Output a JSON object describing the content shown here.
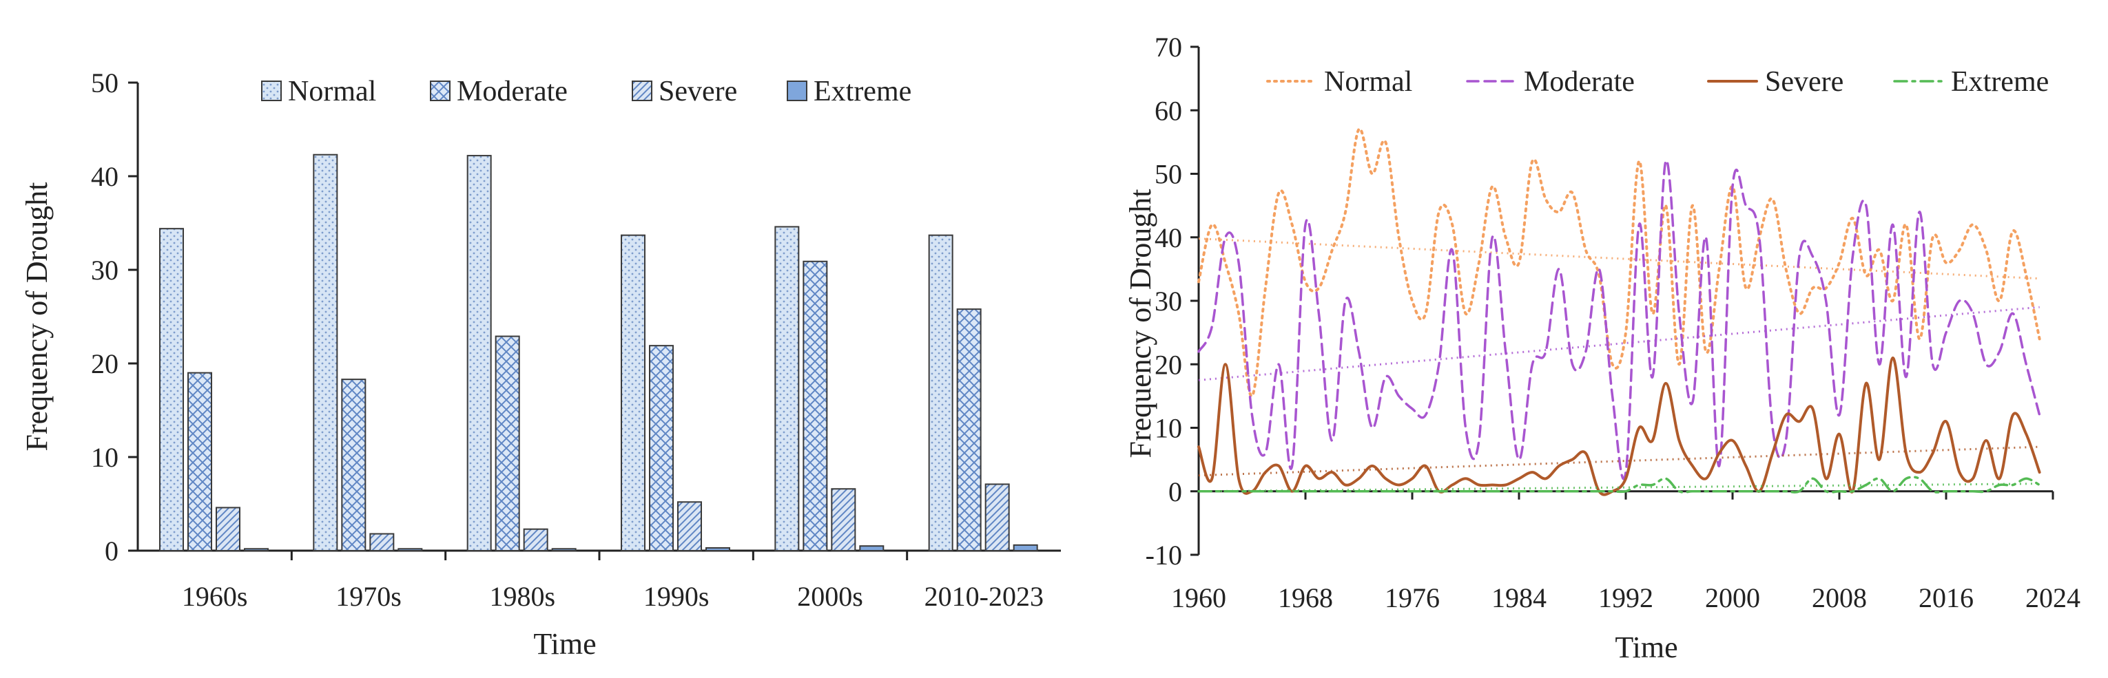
{
  "chart_data": [
    {
      "type": "bar",
      "xlabel": "Time",
      "ylabel": "Frequency of Drought",
      "ylim": [
        0,
        50
      ],
      "yticks": [
        0,
        10,
        20,
        30,
        40,
        50
      ],
      "categories": [
        "1960s",
        "1970s",
        "1980s",
        "1990s",
        "2000s",
        "2010-2023"
      ],
      "legend_position": "top",
      "series": [
        {
          "name": "Normal",
          "values": [
            34.4,
            42.3,
            42.2,
            33.7,
            34.6,
            33.7
          ],
          "fill": "#d4e3f4",
          "pattern": "dots"
        },
        {
          "name": "Moderate",
          "values": [
            19.0,
            18.3,
            22.9,
            21.9,
            30.9,
            25.8
          ],
          "fill": "#c9dcf3",
          "pattern": "crosshatch"
        },
        {
          "name": "Severe",
          "values": [
            4.6,
            1.8,
            2.3,
            5.2,
            6.6,
            7.1
          ],
          "fill": "#d2e0f2",
          "pattern": "diagonal"
        },
        {
          "name": "Extreme",
          "values": [
            0.2,
            0.2,
            0.2,
            0.3,
            0.5,
            0.6
          ],
          "fill": "#7fa6dc",
          "pattern": "solid"
        }
      ]
    },
    {
      "type": "line",
      "xlabel": "Time",
      "ylabel": "Frequency of  Drought",
      "xlim": [
        1960,
        2024
      ],
      "ylim": [
        -10,
        70
      ],
      "xticks": [
        1960,
        1968,
        1976,
        1984,
        1992,
        2000,
        2008,
        2016,
        2024
      ],
      "yticks": [
        -10,
        0,
        10,
        20,
        30,
        40,
        50,
        60,
        70
      ],
      "x": [
        1960,
        1961,
        1962,
        1963,
        1964,
        1965,
        1966,
        1967,
        1968,
        1969,
        1970,
        1971,
        1972,
        1973,
        1974,
        1975,
        1976,
        1977,
        1978,
        1979,
        1980,
        1981,
        1982,
        1983,
        1984,
        1985,
        1986,
        1987,
        1988,
        1989,
        1990,
        1991,
        1992,
        1993,
        1994,
        1995,
        1996,
        1997,
        1998,
        1999,
        2000,
        2001,
        2002,
        2003,
        2004,
        2005,
        2006,
        2007,
        2008,
        2009,
        2010,
        2011,
        2012,
        2013,
        2014,
        2015,
        2016,
        2017,
        2018,
        2019,
        2020,
        2021,
        2022,
        2023
      ],
      "legend_position": "top",
      "series": [
        {
          "name": "Normal",
          "color": "#f4a060",
          "style": "dotted",
          "values": [
            33,
            42,
            36,
            28,
            15,
            32,
            47,
            42,
            33,
            32,
            38,
            44,
            57,
            50,
            55,
            40,
            30,
            28,
            44,
            42,
            28,
            36,
            48,
            40,
            36,
            52,
            46,
            44,
            47,
            38,
            34,
            20,
            25,
            52,
            28,
            45,
            20,
            45,
            22,
            35,
            48,
            32,
            40,
            46,
            35,
            28,
            32,
            32,
            36,
            43,
            34,
            38,
            30,
            42,
            24,
            40,
            36,
            38,
            42,
            38,
            30,
            41,
            34,
            24
          ],
          "trend": [
            39.8,
            33.5
          ]
        },
        {
          "name": "Moderate",
          "color": "#a855d0",
          "style": "dashed",
          "values": [
            22,
            26,
            40,
            36,
            12,
            6,
            20,
            4,
            42,
            28,
            8,
            30,
            22,
            10,
            18,
            15,
            13,
            12,
            20,
            38,
            10,
            8,
            40,
            22,
            5,
            20,
            22,
            35,
            20,
            22,
            35,
            15,
            3,
            42,
            18,
            52,
            28,
            14,
            40,
            4,
            48,
            45,
            40,
            10,
            8,
            37,
            37,
            30,
            12,
            37,
            45,
            20,
            42,
            18,
            44,
            20,
            25,
            30,
            28,
            20,
            22,
            28,
            20,
            12
          ],
          "trend": [
            17.5,
            29.0
          ]
        },
        {
          "name": "Severe",
          "color": "#b05a2a",
          "style": "solid",
          "values": [
            7,
            2,
            20,
            2,
            0,
            3,
            4,
            0,
            4,
            2,
            3,
            1,
            2,
            4,
            2,
            1,
            2,
            4,
            0,
            1,
            2,
            1,
            1,
            1,
            2,
            3,
            2,
            4,
            5,
            6,
            0,
            0,
            2,
            10,
            8,
            17,
            8,
            4,
            2,
            6,
            8,
            4,
            0,
            6,
            12,
            11,
            13,
            2,
            9,
            0,
            17,
            5,
            21,
            6,
            3,
            6,
            11,
            3,
            2,
            8,
            2,
            12,
            9,
            3
          ],
          "trend": [
            2.5,
            7.0
          ]
        },
        {
          "name": "Extreme",
          "color": "#55bb55",
          "style": "dashdot",
          "values": [
            0,
            0,
            0,
            0,
            0,
            0,
            0,
            0,
            0,
            0,
            0,
            0,
            0,
            0,
            0,
            0,
            0,
            0,
            0,
            0,
            0,
            0,
            0,
            0,
            0,
            0,
            0,
            0,
            0,
            0,
            0,
            0,
            0,
            1,
            1,
            2,
            0,
            0,
            0,
            0,
            0,
            0,
            0,
            0,
            0,
            0,
            2,
            0,
            0,
            0,
            1,
            2,
            0,
            2,
            2,
            0,
            0,
            0,
            0,
            0,
            1,
            1,
            2,
            1
          ],
          "trend": [
            0.0,
            1.2
          ]
        }
      ]
    }
  ]
}
